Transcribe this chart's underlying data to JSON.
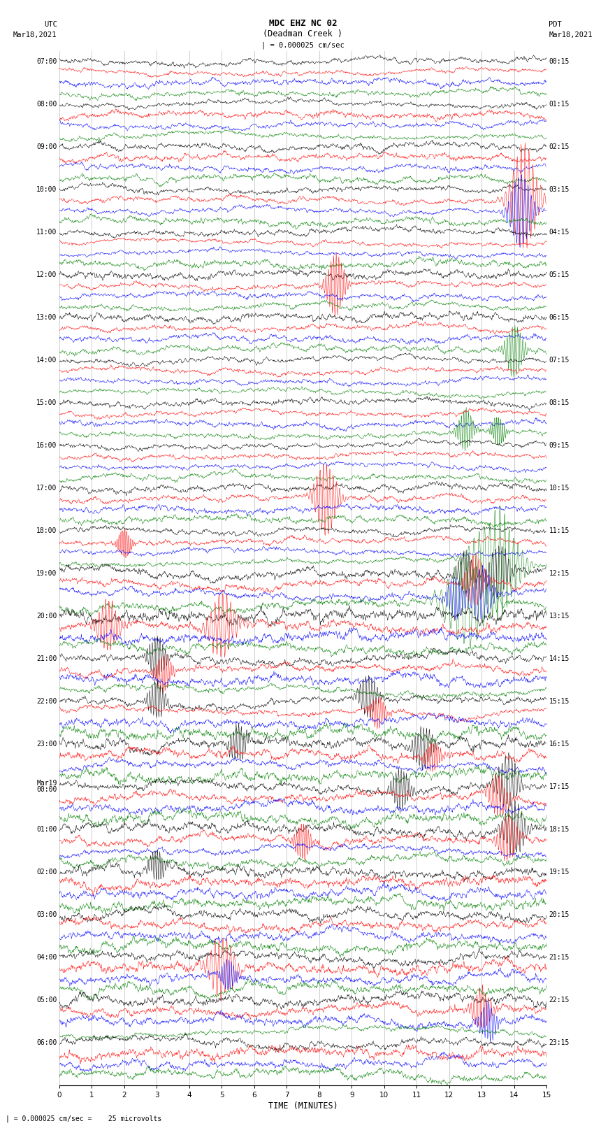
{
  "title_line1": "MDC EHZ NC 02",
  "title_line2": "(Deadman Creek )",
  "title_line3": "| = 0.000025 cm/sec",
  "left_header_line1": "UTC",
  "left_header_line2": "Mar18,2021",
  "right_header_line1": "PDT",
  "right_header_line2": "Mar18,2021",
  "bottom_label": "TIME (MINUTES)",
  "bottom_note": "| = 0.000025 cm/sec =    25 microvolts",
  "x_ticks": [
    0,
    1,
    2,
    3,
    4,
    5,
    6,
    7,
    8,
    9,
    10,
    11,
    12,
    13,
    14,
    15
  ],
  "trace_colors": [
    "black",
    "red",
    "blue",
    "green"
  ],
  "left_labels": [
    "07:00",
    "08:00",
    "09:00",
    "10:00",
    "11:00",
    "12:00",
    "13:00",
    "14:00",
    "15:00",
    "16:00",
    "17:00",
    "18:00",
    "19:00",
    "20:00",
    "21:00",
    "22:00",
    "23:00",
    "Mar19\n00:00",
    "01:00",
    "02:00",
    "03:00",
    "04:00",
    "05:00",
    "06:00"
  ],
  "right_labels": [
    "00:15",
    "01:15",
    "02:15",
    "03:15",
    "04:15",
    "05:15",
    "06:15",
    "07:15",
    "08:15",
    "09:15",
    "10:15",
    "11:15",
    "12:15",
    "13:15",
    "14:15",
    "15:15",
    "16:15",
    "17:15",
    "18:15",
    "19:15",
    "20:15",
    "21:15",
    "22:15",
    "23:15"
  ],
  "background_color": "white",
  "fig_width": 8.5,
  "fig_height": 16.13,
  "dpi": 100,
  "vline_color": "#aaaaaa",
  "noise_scale": 0.25,
  "n_hours": 24,
  "traces_per_hour": 4
}
